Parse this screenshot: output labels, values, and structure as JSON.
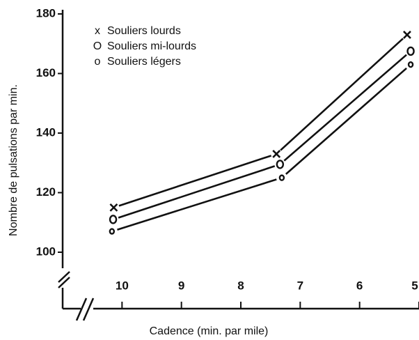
{
  "chart_data": {
    "type": "line",
    "xlabel": "Cadence (min. par mile)",
    "ylabel": "Nombre de pulsations par min.",
    "series": [
      {
        "name": "Souliers lourds",
        "marker": "x",
        "color": "#111111",
        "x": [
          10.14,
          7.4,
          5.2
        ],
        "values": [
          115,
          133,
          173
        ]
      },
      {
        "name": "Souliers mi-lourds",
        "marker": "O",
        "color": "#111111",
        "x": [
          10.15,
          7.34,
          5.14
        ],
        "values": [
          111,
          129.5,
          167.5
        ]
      },
      {
        "name": "Souliers légers",
        "marker": "o",
        "color": "#111111",
        "x": [
          10.17,
          7.31,
          5.14
        ],
        "values": [
          107,
          125,
          163
        ]
      }
    ],
    "xlim": [
      11,
      5
    ],
    "xticks": [
      10,
      9,
      8,
      7,
      6,
      5
    ],
    "ylim": [
      100,
      180
    ],
    "yticks": [
      100,
      120,
      140,
      160,
      180
    ],
    "legend": "upper left"
  }
}
